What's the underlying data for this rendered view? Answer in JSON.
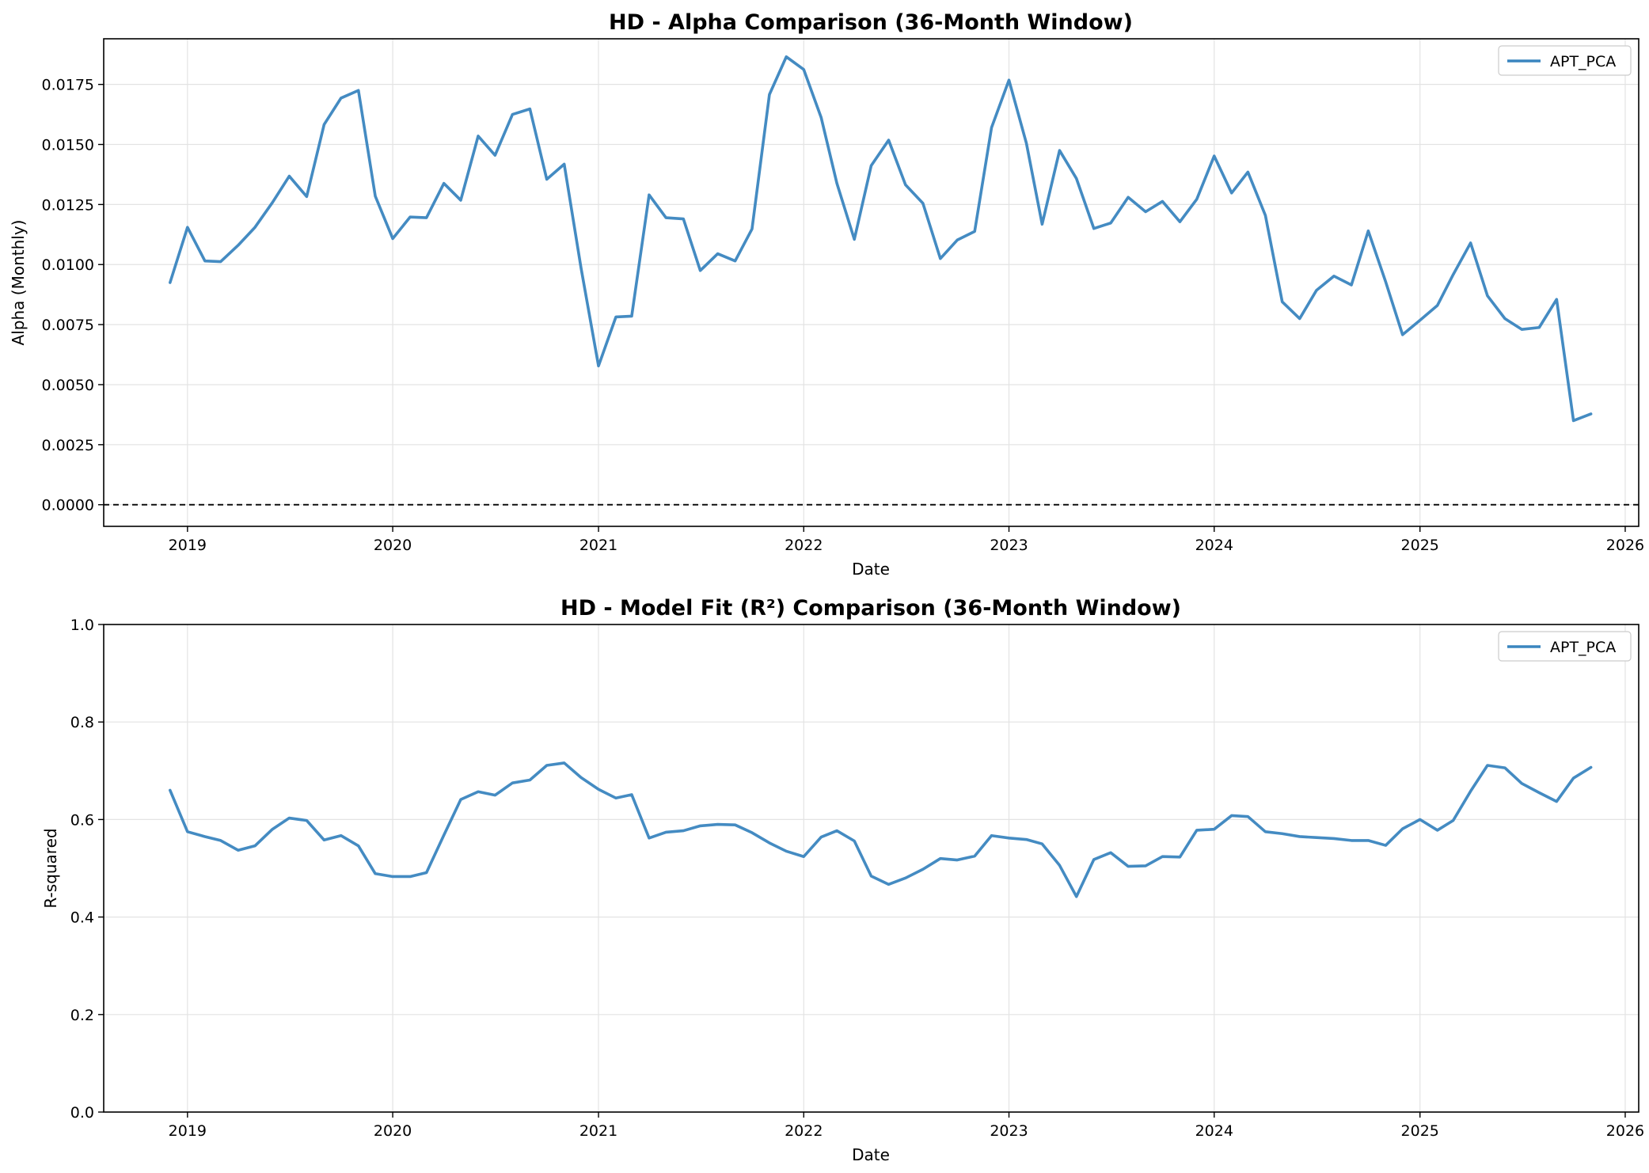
{
  "chart_data": [
    {
      "type": "line",
      "title": "HD - Alpha Comparison (36-Month Window)",
      "xlabel": "Date",
      "ylabel": "Alpha (Monthly)",
      "xlim": [
        "2018-08-05",
        "2026-01-25"
      ],
      "ylim": [
        -0.0009,
        0.0194
      ],
      "x_ticks": [
        "2019",
        "2020",
        "2021",
        "2022",
        "2023",
        "2024",
        "2025",
        "2026"
      ],
      "y_ticks": [
        "0.0000",
        "0.0025",
        "0.0050",
        "0.0075",
        "0.0100",
        "0.0125",
        "0.0150",
        "0.0175"
      ],
      "grid": true,
      "legend_position": "top-right",
      "reference_line": {
        "y": 0.0,
        "style": "dashed",
        "color": "#000000"
      },
      "x": [
        "2018-12-01",
        "2019-01-01",
        "2019-02-01",
        "2019-03-01",
        "2019-04-01",
        "2019-05-01",
        "2019-06-01",
        "2019-07-01",
        "2019-08-01",
        "2019-09-01",
        "2019-10-01",
        "2019-11-01",
        "2019-12-01",
        "2020-01-01",
        "2020-02-01",
        "2020-03-01",
        "2020-04-01",
        "2020-05-01",
        "2020-06-01",
        "2020-07-01",
        "2020-08-01",
        "2020-09-01",
        "2020-10-01",
        "2020-11-01",
        "2020-12-01",
        "2021-01-01",
        "2021-02-01",
        "2021-03-01",
        "2021-04-01",
        "2021-05-01",
        "2021-06-01",
        "2021-07-01",
        "2021-08-01",
        "2021-09-01",
        "2021-10-01",
        "2021-11-01",
        "2021-12-01",
        "2022-01-01",
        "2022-02-01",
        "2022-03-01",
        "2022-04-01",
        "2022-05-01",
        "2022-06-01",
        "2022-07-01",
        "2022-08-01",
        "2022-09-01",
        "2022-10-01",
        "2022-11-01",
        "2022-12-01",
        "2023-01-01",
        "2023-02-01",
        "2023-03-01",
        "2023-04-01",
        "2023-05-01",
        "2023-06-01",
        "2023-07-01",
        "2023-08-01",
        "2023-09-01",
        "2023-10-01",
        "2023-11-01",
        "2023-12-01",
        "2024-01-01",
        "2024-02-01",
        "2024-03-01",
        "2024-04-01",
        "2024-05-01",
        "2024-06-01",
        "2024-07-01",
        "2024-08-01",
        "2024-09-01",
        "2024-10-01",
        "2024-11-01",
        "2024-12-01",
        "2025-01-01",
        "2025-02-01",
        "2025-03-01",
        "2025-04-01",
        "2025-05-01",
        "2025-06-01",
        "2025-07-01",
        "2025-08-01",
        "2025-09-01",
        "2025-10-01",
        "2025-11-01"
      ],
      "series": [
        {
          "name": "APT_PCA",
          "color": "#3a85bf",
          "values": [
            0.00925,
            0.01155,
            0.01015,
            0.01012,
            0.0108,
            0.01155,
            0.01258,
            0.01368,
            0.01283,
            0.01583,
            0.01693,
            0.01725,
            0.01285,
            0.01108,
            0.01198,
            0.01195,
            0.01338,
            0.01268,
            0.01535,
            0.01455,
            0.01625,
            0.01648,
            0.01355,
            0.01418,
            0.00985,
            0.00578,
            0.00782,
            0.00785,
            0.0129,
            0.01195,
            0.0119,
            0.00975,
            0.01045,
            0.01015,
            0.01148,
            0.01708,
            0.01865,
            0.01812,
            0.01612,
            0.01338,
            0.01105,
            0.01412,
            0.01518,
            0.01332,
            0.01255,
            0.01025,
            0.01102,
            0.01138,
            0.0157,
            0.01768,
            0.01505,
            0.01168,
            0.01475,
            0.01358,
            0.0115,
            0.01173,
            0.0128,
            0.0122,
            0.01263,
            0.01178,
            0.01272,
            0.01452,
            0.01298,
            0.01385,
            0.01205,
            0.00845,
            0.00775,
            0.00893,
            0.00952,
            0.00915,
            0.0114,
            0.00928,
            0.00708,
            0.00768,
            0.0083,
            0.00958,
            0.0109,
            0.0087,
            0.00775,
            0.0073,
            0.00738,
            0.00855,
            0.0035,
            0.00378
          ]
        }
      ]
    },
    {
      "type": "line",
      "title": "HD - Model Fit (R²) Comparison (36-Month Window)",
      "xlabel": "Date",
      "ylabel": "R-squared",
      "xlim": [
        "2018-08-05",
        "2026-01-25"
      ],
      "ylim": [
        0.0,
        1.0
      ],
      "x_ticks": [
        "2019",
        "2020",
        "2021",
        "2022",
        "2023",
        "2024",
        "2025",
        "2026"
      ],
      "y_ticks": [
        "0.0",
        "0.2",
        "0.4",
        "0.6",
        "0.8",
        "1.0"
      ],
      "grid": true,
      "legend_position": "top-right",
      "x": [
        "2018-12-01",
        "2019-01-01",
        "2019-02-01",
        "2019-03-01",
        "2019-04-01",
        "2019-05-01",
        "2019-06-01",
        "2019-07-01",
        "2019-08-01",
        "2019-09-01",
        "2019-10-01",
        "2019-11-01",
        "2019-12-01",
        "2020-01-01",
        "2020-02-01",
        "2020-03-01",
        "2020-04-01",
        "2020-05-01",
        "2020-06-01",
        "2020-07-01",
        "2020-08-01",
        "2020-09-01",
        "2020-10-01",
        "2020-11-01",
        "2020-12-01",
        "2021-01-01",
        "2021-02-01",
        "2021-03-01",
        "2021-04-01",
        "2021-05-01",
        "2021-06-01",
        "2021-07-01",
        "2021-08-01",
        "2021-09-01",
        "2021-10-01",
        "2021-11-01",
        "2021-12-01",
        "2022-01-01",
        "2022-02-01",
        "2022-03-01",
        "2022-04-01",
        "2022-05-01",
        "2022-06-01",
        "2022-07-01",
        "2022-08-01",
        "2022-09-01",
        "2022-10-01",
        "2022-11-01",
        "2022-12-01",
        "2023-01-01",
        "2023-02-01",
        "2023-03-01",
        "2023-04-01",
        "2023-05-01",
        "2023-06-01",
        "2023-07-01",
        "2023-08-01",
        "2023-09-01",
        "2023-10-01",
        "2023-11-01",
        "2023-12-01",
        "2024-01-01",
        "2024-02-01",
        "2024-03-01",
        "2024-04-01",
        "2024-05-01",
        "2024-06-01",
        "2024-07-01",
        "2024-08-01",
        "2024-09-01",
        "2024-10-01",
        "2024-11-01",
        "2024-12-01",
        "2025-01-01",
        "2025-02-01",
        "2025-03-01",
        "2025-04-01",
        "2025-05-01",
        "2025-06-01",
        "2025-07-01",
        "2025-08-01",
        "2025-09-01",
        "2025-10-01",
        "2025-11-01"
      ],
      "series": [
        {
          "name": "APT_PCA",
          "color": "#3a85bf",
          "values": [
            0.66,
            0.575,
            0.565,
            0.557,
            0.537,
            0.546,
            0.58,
            0.603,
            0.598,
            0.558,
            0.567,
            0.546,
            0.489,
            0.483,
            0.483,
            0.491,
            0.568,
            0.641,
            0.657,
            0.65,
            0.675,
            0.681,
            0.711,
            0.716,
            0.686,
            0.662,
            0.644,
            0.651,
            0.562,
            0.574,
            0.577,
            0.587,
            0.59,
            0.589,
            0.573,
            0.552,
            0.535,
            0.524,
            0.564,
            0.577,
            0.556,
            0.484,
            0.467,
            0.48,
            0.498,
            0.52,
            0.517,
            0.525,
            0.567,
            0.562,
            0.559,
            0.55,
            0.506,
            0.442,
            0.518,
            0.532,
            0.504,
            0.505,
            0.524,
            0.523,
            0.578,
            0.58,
            0.608,
            0.606,
            0.575,
            0.571,
            0.565,
            0.563,
            0.561,
            0.557,
            0.557,
            0.547,
            0.581,
            0.6,
            0.578,
            0.598,
            0.658,
            0.711,
            0.706,
            0.674,
            0.655,
            0.637,
            0.685,
            0.707
          ]
        }
      ]
    }
  ]
}
